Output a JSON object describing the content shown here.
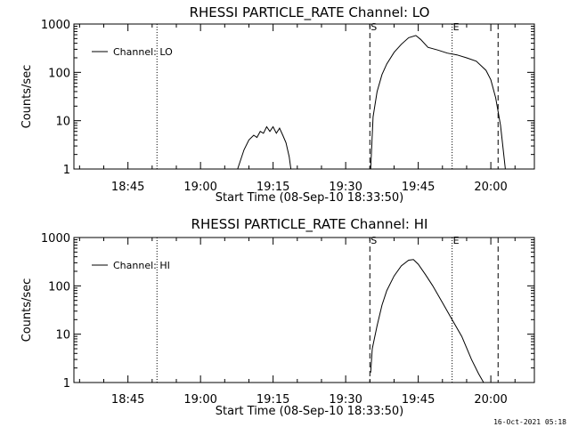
{
  "footer": {
    "timestamp": "16-Oct-2021 05:18"
  },
  "chart_data": [
    {
      "type": "line",
      "title": "RHESSI PARTICLE_RATE Channel: LO",
      "xlabel": "Start Time (08-Sep-10 18:33:50)",
      "ylabel": "Counts/sec",
      "y_scale": "log",
      "ylim": [
        1,
        1000
      ],
      "yticks": [
        {
          "value": 1,
          "label": "1"
        },
        {
          "value": 10,
          "label": "10"
        },
        {
          "value": 100,
          "label": "100"
        },
        {
          "value": 1000,
          "label": "1000"
        }
      ],
      "xlim": [
        "18:33:50",
        "20:09:00"
      ],
      "xticks": [
        "18:45",
        "19:00",
        "19:15",
        "19:30",
        "19:45",
        "20:00"
      ],
      "legend": {
        "position": "top-left",
        "entries": [
          "Channel: LO"
        ]
      },
      "markers": [
        {
          "time": "18:51:00",
          "style": "dotted",
          "label": ""
        },
        {
          "time": "19:35:00",
          "style": "dashed",
          "label": "S"
        },
        {
          "time": "19:52:00",
          "style": "dotted",
          "label": "E"
        },
        {
          "time": "20:01:30",
          "style": "dashed",
          "label": ""
        },
        {
          "time": "20:09:00",
          "style": "dotted",
          "label": ""
        }
      ],
      "series": [
        {
          "name": "Channel: LO",
          "segments": [
            {
              "x": [
                "19:07:40",
                "19:09:00",
                "19:10:00",
                "19:11:00",
                "19:11:40",
                "19:12:20",
                "19:13:00",
                "19:13:40",
                "19:14:20",
                "19:15:00",
                "19:15:40",
                "19:16:20",
                "19:17:00",
                "19:17:40",
                "19:18:20",
                "19:18:40"
              ],
              "y": [
                1,
                2.5,
                4,
                5,
                4.5,
                6,
                5.5,
                7.5,
                6,
                7.5,
                5.5,
                7,
                5,
                3.5,
                1.8,
                1
              ]
            },
            {
              "x": [
                "19:35:10",
                "19:35:40",
                "19:36:30",
                "19:37:30",
                "19:38:30",
                "19:40:00",
                "19:41:30",
                "19:43:00",
                "19:44:30",
                "19:45:30",
                "19:47:00",
                "19:49:00",
                "19:51:00",
                "19:53:00",
                "19:55:00",
                "19:57:00",
                "19:59:00",
                "20:00:00",
                "20:01:00",
                "20:02:00",
                "20:02:40",
                "20:03:00"
              ],
              "y": [
                1,
                12,
                40,
                90,
                150,
                260,
                380,
                520,
                580,
                480,
                330,
                290,
                250,
                230,
                200,
                170,
                110,
                70,
                30,
                8,
                2,
                1
              ]
            }
          ]
        }
      ]
    },
    {
      "type": "line",
      "title": "RHESSI PARTICLE_RATE Channel: HI",
      "xlabel": "Start Time (08-Sep-10 18:33:50)",
      "ylabel": "Counts/sec",
      "y_scale": "log",
      "ylim": [
        1,
        1000
      ],
      "yticks": [
        {
          "value": 1,
          "label": "1"
        },
        {
          "value": 10,
          "label": "10"
        },
        {
          "value": 100,
          "label": "100"
        },
        {
          "value": 1000,
          "label": "1000"
        }
      ],
      "xlim": [
        "18:33:50",
        "20:09:00"
      ],
      "xticks": [
        "18:45",
        "19:00",
        "19:15",
        "19:30",
        "19:45",
        "20:00"
      ],
      "legend": {
        "position": "top-left",
        "entries": [
          "Channel: HI"
        ]
      },
      "markers": [
        {
          "time": "18:51:00",
          "style": "dotted",
          "label": ""
        },
        {
          "time": "19:35:00",
          "style": "dashed",
          "label": "S"
        },
        {
          "time": "19:52:00",
          "style": "dotted",
          "label": "E"
        },
        {
          "time": "20:01:30",
          "style": "dashed",
          "label": ""
        },
        {
          "time": "20:09:00",
          "style": "dotted",
          "label": ""
        }
      ],
      "series": [
        {
          "name": "Channel: HI",
          "segments": [
            {
              "x": [
                "19:35:10",
                "19:35:30",
                "19:36:30",
                "19:37:30",
                "19:38:30",
                "19:40:00",
                "19:41:30",
                "19:43:00",
                "19:44:00",
                "19:45:00",
                "19:46:30",
                "19:48:00",
                "19:50:00",
                "19:52:00",
                "19:54:00",
                "19:56:00",
                "19:57:30",
                "19:58:30"
              ],
              "y": [
                1.6,
                5,
                15,
                40,
                80,
                160,
                260,
                340,
                350,
                280,
                170,
                100,
                45,
                20,
                9,
                3,
                1.5,
                1
              ]
            }
          ]
        }
      ]
    }
  ]
}
